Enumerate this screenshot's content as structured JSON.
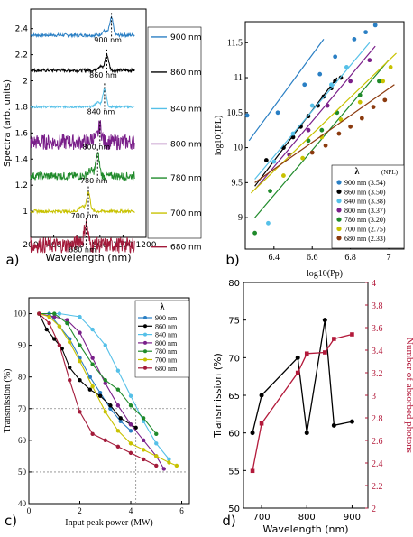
{
  "panel_labels": [
    "a)",
    "b)",
    "c)",
    "d)"
  ],
  "chart_data": [
    {
      "panel": "a",
      "type": "line",
      "title": "",
      "xlabel": "Wavelength (nm)",
      "ylabel": "Spectra (arb. units)",
      "xlim": [
        200,
        1200
      ],
      "ylim": [
        0.8,
        2.55
      ],
      "xticks": [
        "200",
        "400",
        "600",
        "800",
        "1000",
        "1200"
      ],
      "yticks": [
        "1",
        "1.2",
        "1.4",
        "1.6",
        "1.8",
        "2",
        "2.2",
        "2.4"
      ],
      "grid": false,
      "legend_position": "right",
      "series": [
        {
          "name": "900 nm",
          "color": "#2a7fc4",
          "baseline": 2.35,
          "peak_x": 900,
          "peak_h": 0.13,
          "noise": 0.012,
          "annotation": "900 nm"
        },
        {
          "name": "860 nm",
          "color": "#000000",
          "baseline": 2.08,
          "peak_x": 860,
          "peak_h": 0.12,
          "noise": 0.012,
          "annotation": "860 nm"
        },
        {
          "name": "840 nm",
          "color": "#55c0e8",
          "baseline": 1.8,
          "peak_x": 840,
          "peak_h": 0.14,
          "noise": 0.008,
          "annotation": "840 nm"
        },
        {
          "name": "800 nm",
          "color": "#7a1f8a",
          "baseline": 1.53,
          "peak_x": 800,
          "peak_h": 0.12,
          "noise": 0.06,
          "annotation": "800 nm"
        },
        {
          "name": "780 nm",
          "color": "#1f8a2a",
          "baseline": 1.27,
          "peak_x": 780,
          "peak_h": 0.17,
          "noise": 0.03,
          "annotation": "780 nm"
        },
        {
          "name": "700 nm",
          "color": "#c8c200",
          "baseline": 1.0,
          "peak_x": 700,
          "peak_h": 0.15,
          "noise": 0.012,
          "annotation": "700 nm"
        },
        {
          "name": "680 nm",
          "color": "#a31a3a",
          "baseline": 0.74,
          "peak_x": 680,
          "peak_h": 0.17,
          "noise": 0.06,
          "annotation": "680 nm"
        }
      ]
    },
    {
      "panel": "b",
      "type": "scatter",
      "title": "",
      "xlabel": "log10(Pp)",
      "ylabel": "log10(IPL)",
      "xlim": [
        6.25,
        7.08
      ],
      "ylim": [
        8.55,
        11.8
      ],
      "xticks": [
        "6.4",
        "6.6",
        "6.8",
        "7"
      ],
      "yticks": [
        "9",
        "9.5",
        "10",
        "10.5",
        "11",
        "11.5"
      ],
      "grid": false,
      "legend_title": "λ",
      "legend_title2": "(NPL)",
      "legend_position": "bottom-right",
      "series": [
        {
          "name": "900 nm (3.54)",
          "color": "#2a7fc4",
          "x": [
            6.26,
            6.42,
            6.56,
            6.64,
            6.72,
            6.82,
            6.88,
            6.93
          ],
          "y": [
            10.46,
            10.5,
            10.9,
            11.05,
            11.3,
            11.55,
            11.65,
            11.75
          ],
          "fit": [
            [
              6.27,
              10.1
            ],
            [
              6.66,
              11.55
            ]
          ]
        },
        {
          "name": "860 nm (3.50)",
          "color": "#000000",
          "x": [
            6.36,
            6.45,
            6.5,
            6.54,
            6.58,
            6.63,
            6.66,
            6.7,
            6.72,
            6.75
          ],
          "y": [
            9.82,
            10.0,
            10.15,
            10.3,
            10.45,
            10.6,
            10.73,
            10.85,
            10.95,
            11.0
          ],
          "fit": [
            [
              6.3,
              9.45
            ],
            [
              6.73,
              11.0
            ]
          ]
        },
        {
          "name": "840 nm (3.38)",
          "color": "#55c0e8",
          "x": [
            6.37,
            6.4,
            6.5,
            6.6,
            6.7,
            6.78
          ],
          "y": [
            8.92,
            9.8,
            10.2,
            10.6,
            10.9,
            11.15
          ],
          "fit": [
            [
              6.3,
              9.55
            ],
            [
              6.9,
              11.5
            ]
          ]
        },
        {
          "name": "800 nm (3.37)",
          "color": "#7a1f8a",
          "x": [
            6.48,
            6.58,
            6.68,
            6.8,
            6.9
          ],
          "y": [
            9.9,
            10.25,
            10.6,
            10.95,
            11.25
          ],
          "fit": [
            [
              6.3,
              9.4
            ],
            [
              6.93,
              11.45
            ]
          ]
        },
        {
          "name": "780 nm (3.20)",
          "color": "#1f8a2a",
          "x": [
            6.3,
            6.38,
            6.58,
            6.65,
            6.73,
            6.85,
            6.95
          ],
          "y": [
            8.78,
            9.38,
            10.1,
            10.25,
            10.5,
            10.75,
            10.95
          ],
          "fit": [
            [
              6.3,
              9.0
            ],
            [
              7.0,
              11.25
            ]
          ]
        },
        {
          "name": "700 nm (2.75)",
          "color": "#c8c200",
          "x": [
            6.45,
            6.55,
            6.65,
            6.75,
            6.85,
            6.97,
            7.01
          ],
          "y": [
            9.6,
            9.85,
            10.15,
            10.4,
            10.65,
            10.95,
            11.15
          ],
          "fit": [
            [
              6.28,
              9.35
            ],
            [
              7.04,
              11.35
            ]
          ]
        },
        {
          "name": "680 nm (2.33)",
          "color": "#8b3a0e",
          "x": [
            6.6,
            6.67,
            6.74,
            6.8,
            6.86,
            6.92,
            6.98
          ],
          "y": [
            9.93,
            10.03,
            10.2,
            10.3,
            10.42,
            10.58,
            10.68
          ],
          "fit": [
            [
              6.3,
              9.5
            ],
            [
              7.03,
              10.9
            ]
          ]
        }
      ]
    },
    {
      "panel": "c",
      "type": "line",
      "title": "",
      "xlabel": "Input peak power (MW)",
      "ylabel": "Transmission (%)",
      "xlim": [
        0,
        6.3
      ],
      "ylim": [
        40,
        105
      ],
      "xticks": [
        "0",
        "2",
        "4",
        "6"
      ],
      "yticks": [
        "40",
        "50",
        "60",
        "70",
        "80",
        "90",
        "100"
      ],
      "reference_lines_y": [
        70,
        50
      ],
      "reference_line_x": 4.2,
      "grid": false,
      "legend_title": "λ",
      "legend_position": "top-right",
      "series": [
        {
          "name": "900 nm",
          "color": "#2a7fc4",
          "x": [
            0.4,
            0.8,
            1.2,
            1.6,
            2.0,
            2.4,
            2.8,
            3.2,
            3.6,
            4.0
          ],
          "y": [
            100,
            100,
            96,
            92,
            86,
            80,
            75,
            70,
            66,
            63
          ]
        },
        {
          "name": "860 nm",
          "color": "#000000",
          "x": [
            0.4,
            0.7,
            1.0,
            1.3,
            1.6,
            2.0,
            2.4,
            2.8,
            3.2,
            3.6,
            4.0,
            4.2
          ],
          "y": [
            100,
            95,
            92,
            89,
            83,
            79,
            76,
            74,
            71,
            67,
            65,
            64
          ]
        },
        {
          "name": "840 nm",
          "color": "#55c0e8",
          "x": [
            0.4,
            1.2,
            2.0,
            2.5,
            3.0,
            3.5,
            4.0,
            4.5,
            5.0,
            5.5
          ],
          "y": [
            100,
            100,
            99,
            95,
            90,
            82,
            74,
            66,
            59,
            54
          ]
        },
        {
          "name": "800 nm",
          "color": "#7a1f8a",
          "x": [
            0.4,
            1.0,
            1.5,
            2.0,
            2.5,
            3.0,
            3.5,
            4.0,
            4.5,
            5.0,
            5.3
          ],
          "y": [
            100,
            99,
            98,
            94,
            86,
            78,
            71,
            65,
            60,
            55,
            51
          ]
        },
        {
          "name": "780 nm",
          "color": "#1f8a2a",
          "x": [
            0.4,
            1.0,
            1.5,
            2.0,
            2.5,
            3.0,
            3.5,
            4.0,
            4.5,
            5.0
          ],
          "y": [
            100,
            100,
            97,
            90,
            84,
            79,
            76,
            71,
            67,
            62
          ]
        },
        {
          "name": "700 nm",
          "color": "#c8c200",
          "x": [
            0.4,
            0.8,
            1.2,
            1.6,
            2.0,
            2.5,
            3.0,
            3.5,
            4.0,
            4.5,
            5.0,
            5.5,
            5.8
          ],
          "y": [
            100,
            99,
            96,
            91,
            85,
            77,
            69,
            63,
            59,
            57,
            55,
            53,
            52
          ]
        },
        {
          "name": "680 nm",
          "color": "#a31a3a",
          "x": [
            0.4,
            0.8,
            1.2,
            1.6,
            2.0,
            2.5,
            3.0,
            3.5,
            4.0,
            4.5,
            5.0
          ],
          "y": [
            100,
            97,
            90,
            79,
            69,
            62,
            60,
            58,
            56,
            54,
            52
          ]
        }
      ]
    },
    {
      "panel": "d",
      "type": "line",
      "title": "",
      "xlabel": "Wavelength (nm)",
      "ylabel": "Transmission (%)",
      "ylabel_right": "Number of absorbed photons",
      "xlim": [
        660,
        935
      ],
      "ylim": [
        50,
        80
      ],
      "ylim_right": [
        2.0,
        4.0
      ],
      "xticks": [
        "700",
        "800",
        "900"
      ],
      "yticks": [
        "50",
        "55",
        "60",
        "65",
        "70",
        "75",
        "80"
      ],
      "yticks_right": [
        "2",
        "2.2",
        "2.4",
        "2.6",
        "2.8",
        "3",
        "3.2",
        "3.4",
        "3.6",
        "3.8",
        "4"
      ],
      "grid": false,
      "series": [
        {
          "name": "Transmission",
          "axis": "left",
          "color": "#000000",
          "x": [
            680,
            700,
            780,
            800,
            840,
            860,
            900
          ],
          "y": [
            60,
            65,
            70,
            60,
            75,
            61,
            61.5
          ]
        },
        {
          "name": "Photons",
          "axis": "right",
          "color": "#b3193a",
          "x": [
            680,
            700,
            780,
            800,
            840,
            860,
            900
          ],
          "y": [
            2.33,
            2.75,
            3.2,
            3.37,
            3.38,
            3.5,
            3.54
          ]
        }
      ]
    }
  ]
}
